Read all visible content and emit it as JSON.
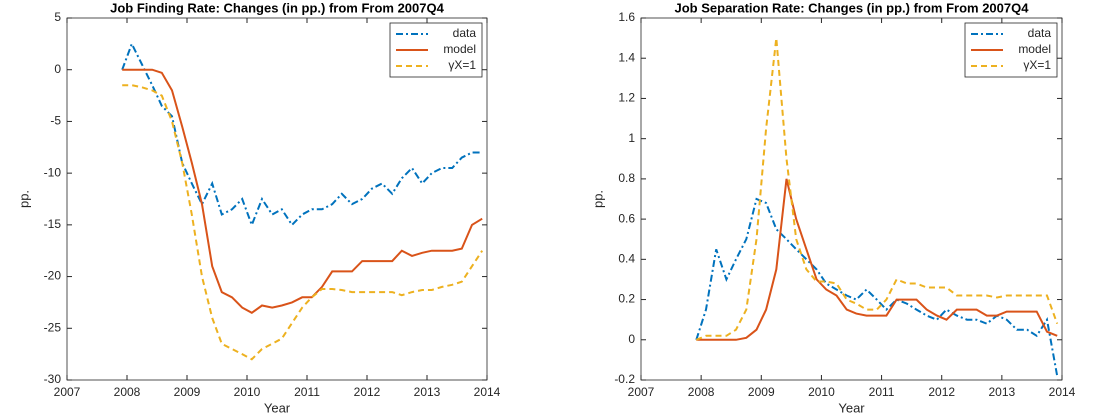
{
  "chart_data": [
    {
      "type": "line",
      "title": "Job Finding Rate: Changes (in pp.) from From 2007Q4",
      "x_label": "Year",
      "y_label": "pp.",
      "xlim": [
        2007,
        2014
      ],
      "xticks": [
        2007,
        2008,
        2009,
        2010,
        2011,
        2012,
        2013,
        2014
      ],
      "ylim": [
        -30,
        5
      ],
      "yticks": [
        -30,
        -25,
        -20,
        -15,
        -10,
        -5,
        0,
        5
      ],
      "legend": "upper right",
      "x": [
        2007.92,
        2008.08,
        2008.25,
        2008.42,
        2008.58,
        2008.75,
        2008.92,
        2009.08,
        2009.25,
        2009.42,
        2009.58,
        2009.75,
        2009.92,
        2010.08,
        2010.25,
        2010.42,
        2010.58,
        2010.75,
        2010.92,
        2011.08,
        2011.25,
        2011.42,
        2011.58,
        2011.75,
        2011.92,
        2012.08,
        2012.25,
        2012.42,
        2012.58,
        2012.75,
        2012.92,
        2013.08,
        2013.25,
        2013.42,
        2013.58,
        2013.75,
        2013.92
      ],
      "series": [
        {
          "name": "data",
          "color": "#0072bd",
          "line_style": "dashdot",
          "values": [
            0,
            2.5,
            0.5,
            -1.5,
            -3.5,
            -4.5,
            -9,
            -11,
            -13,
            -11,
            -14,
            -13.5,
            -12.5,
            -15,
            -12.5,
            -14,
            -13.5,
            -15,
            -14,
            -13.5,
            -13.5,
            -13,
            -12,
            -13,
            -12.5,
            -11.5,
            -11,
            -12,
            -10.5,
            -9.5,
            -11,
            -10,
            -9.5,
            -9.5,
            -8.5,
            -8,
            -8
          ]
        },
        {
          "name": "model",
          "color": "#d95319",
          "line_style": "solid",
          "values": [
            0,
            0,
            0,
            0,
            -0.3,
            -2,
            -5.5,
            -9,
            -13,
            -19,
            -21.5,
            -22,
            -23,
            -23.5,
            -22.8,
            -23,
            -22.8,
            -22.5,
            -22,
            -22,
            -21,
            -19.5,
            -19.5,
            -19.5,
            -18.5,
            -18.5,
            -18.5,
            -18.5,
            -17.5,
            -18,
            -17.7,
            -17.5,
            -17.5,
            -17.5,
            -17.3,
            -15,
            -14.4
          ]
        },
        {
          "name": "γX=1",
          "color": "#edb120",
          "line_style": "dashed",
          "values": [
            -1.5,
            -1.5,
            -1.7,
            -2,
            -2.5,
            -5,
            -9,
            -14,
            -20,
            -24,
            -26.5,
            -27,
            -27.5,
            -28,
            -27,
            -26.5,
            -26,
            -24.5,
            -23,
            -22,
            -21.2,
            -21.2,
            -21.3,
            -21.5,
            -21.5,
            -21.5,
            -21.5,
            -21.5,
            -21.8,
            -21.5,
            -21.3,
            -21.3,
            -21,
            -20.8,
            -20.5,
            -19,
            -17.5
          ]
        }
      ]
    },
    {
      "type": "line",
      "title": "Job Separation Rate: Changes (in pp.) from From 2007Q4",
      "x_label": "Year",
      "y_label": "pp.",
      "xlim": [
        2007,
        2014
      ],
      "xticks": [
        2007,
        2008,
        2009,
        2010,
        2011,
        2012,
        2013,
        2014
      ],
      "ylim": [
        -0.2,
        1.6
      ],
      "yticks": [
        -0.2,
        0,
        0.2,
        0.4,
        0.6,
        0.8,
        1,
        1.2,
        1.4,
        1.6
      ],
      "legend": "upper right",
      "x": [
        2007.92,
        2008.08,
        2008.25,
        2008.42,
        2008.58,
        2008.75,
        2008.92,
        2009.08,
        2009.25,
        2009.42,
        2009.58,
        2009.75,
        2009.92,
        2010.08,
        2010.25,
        2010.42,
        2010.58,
        2010.75,
        2010.92,
        2011.08,
        2011.25,
        2011.42,
        2011.58,
        2011.75,
        2011.92,
        2012.08,
        2012.25,
        2012.42,
        2012.58,
        2012.75,
        2012.92,
        2013.08,
        2013.25,
        2013.42,
        2013.58,
        2013.75,
        2013.92
      ],
      "series": [
        {
          "name": "data",
          "color": "#0072bd",
          "line_style": "dashdot",
          "values": [
            0,
            0.15,
            0.45,
            0.3,
            0.4,
            0.5,
            0.7,
            0.68,
            0.55,
            0.5,
            0.45,
            0.4,
            0.35,
            0.28,
            0.25,
            0.22,
            0.2,
            0.25,
            0.2,
            0.15,
            0.2,
            0.18,
            0.15,
            0.12,
            0.1,
            0.15,
            0.12,
            0.1,
            0.1,
            0.08,
            0.12,
            0.1,
            0.05,
            0.05,
            0.02,
            0.1,
            -0.18
          ]
        },
        {
          "name": "model",
          "color": "#d95319",
          "line_style": "solid",
          "values": [
            0,
            0,
            0,
            0,
            0,
            0.01,
            0.05,
            0.15,
            0.35,
            0.8,
            0.6,
            0.45,
            0.3,
            0.25,
            0.22,
            0.15,
            0.13,
            0.12,
            0.12,
            0.12,
            0.2,
            0.2,
            0.2,
            0.15,
            0.12,
            0.1,
            0.15,
            0.15,
            0.15,
            0.12,
            0.12,
            0.14,
            0.14,
            0.14,
            0.14,
            0.04,
            0.02
          ]
        },
        {
          "name": "γX=1",
          "color": "#edb120",
          "line_style": "dashed",
          "values": [
            0,
            0.02,
            0.02,
            0.02,
            0.05,
            0.15,
            0.5,
            1.05,
            1.5,
            0.9,
            0.5,
            0.35,
            0.29,
            0.29,
            0.28,
            0.2,
            0.18,
            0.15,
            0.15,
            0.2,
            0.3,
            0.28,
            0.28,
            0.26,
            0.26,
            0.26,
            0.22,
            0.22,
            0.22,
            0.22,
            0.21,
            0.22,
            0.22,
            0.22,
            0.22,
            0.22,
            0.08
          ]
        }
      ]
    }
  ]
}
